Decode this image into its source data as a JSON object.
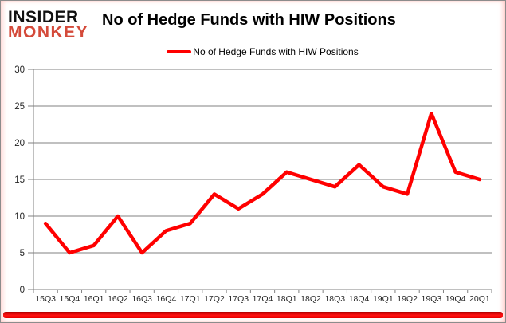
{
  "widget": {
    "logo": {
      "line1": "INSIDER",
      "line2": "MONKEY"
    },
    "title": "No of Hedge Funds with HIW Positions",
    "legend": {
      "label": "No of Hedge Funds with HIW Positions"
    }
  },
  "colors": {
    "line": "#ff0000",
    "logo_black": "#111111",
    "logo_red": "#d44a3a",
    "grid": "#808080",
    "tick_label": "#262626",
    "bottom_bar": "#ff0000"
  },
  "chart_data": {
    "type": "line",
    "title": "No of Hedge Funds with HIW Positions",
    "categories": [
      "15Q3",
      "15Q4",
      "16Q1",
      "16Q2",
      "16Q3",
      "16Q4",
      "17Q1",
      "17Q2",
      "17Q3",
      "17Q4",
      "18Q1",
      "18Q2",
      "18Q3",
      "18Q4",
      "19Q1",
      "19Q2",
      "19Q3",
      "19Q4",
      "20Q1"
    ],
    "series": [
      {
        "name": "No of Hedge Funds with HIW Positions",
        "color": "#ff0000",
        "values": [
          9,
          5,
          6,
          10,
          5,
          8,
          9,
          13,
          11,
          13,
          16,
          15,
          14,
          17,
          14,
          13,
          24,
          16,
          15
        ]
      }
    ],
    "xlabel": "",
    "ylabel": "",
    "ylim": [
      0,
      30
    ],
    "yticks": [
      0,
      5,
      10,
      15,
      20,
      25,
      30
    ],
    "grid": "horizontal",
    "legend_position": "top-center"
  }
}
